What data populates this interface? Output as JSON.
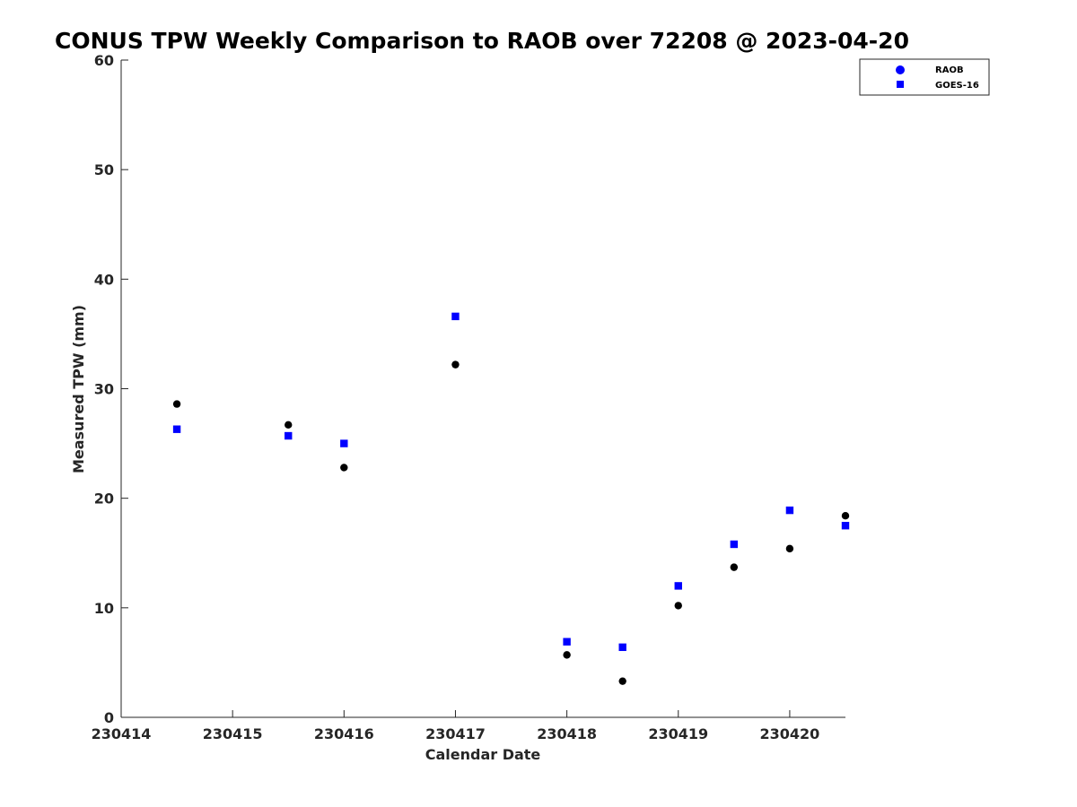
{
  "chart_data": {
    "type": "scatter",
    "title": "CONUS TPW Weekly Comparison to RAOB over 72208 @ 2023-04-20",
    "xlabel": "Calendar Date",
    "ylabel": "Measured TPW (mm)",
    "xlim": [
      230414,
      230420.5
    ],
    "ylim": [
      0,
      60
    ],
    "x_ticks": [
      230414,
      230415,
      230416,
      230417,
      230418,
      230419,
      230420
    ],
    "x_tick_labels": [
      "230414",
      "230415",
      "230416",
      "230417",
      "230418",
      "230419",
      "230420"
    ],
    "y_ticks": [
      0,
      10,
      20,
      30,
      40,
      50,
      60
    ],
    "y_tick_labels": [
      "0",
      "10",
      "20",
      "30",
      "40",
      "50",
      "60"
    ],
    "grid": false,
    "legend": {
      "placement": "top-right",
      "entries": [
        "RAOB",
        "GOES-16"
      ]
    },
    "series": [
      {
        "name": "RAOB",
        "marker": "circle",
        "color": "#000000",
        "x": [
          230414.5,
          230415.5,
          230416,
          230417,
          230418,
          230418.5,
          230419,
          230419.5,
          230420,
          230420.5
        ],
        "y": [
          28.6,
          26.7,
          22.8,
          32.2,
          5.7,
          3.3,
          10.2,
          13.7,
          15.4,
          18.4
        ]
      },
      {
        "name": "GOES-16",
        "marker": "square",
        "color": "#0000ff",
        "x": [
          230414.5,
          230415.5,
          230416,
          230417,
          230418,
          230418.5,
          230419,
          230419.5,
          230420,
          230420.5
        ],
        "y": [
          26.3,
          25.7,
          25.0,
          36.6,
          6.9,
          6.4,
          12.0,
          15.8,
          18.9,
          17.5
        ]
      }
    ],
    "legend_marker_colors": {
      "RAOB": "#0000ff",
      "GOES-16": "#0000ff"
    }
  }
}
